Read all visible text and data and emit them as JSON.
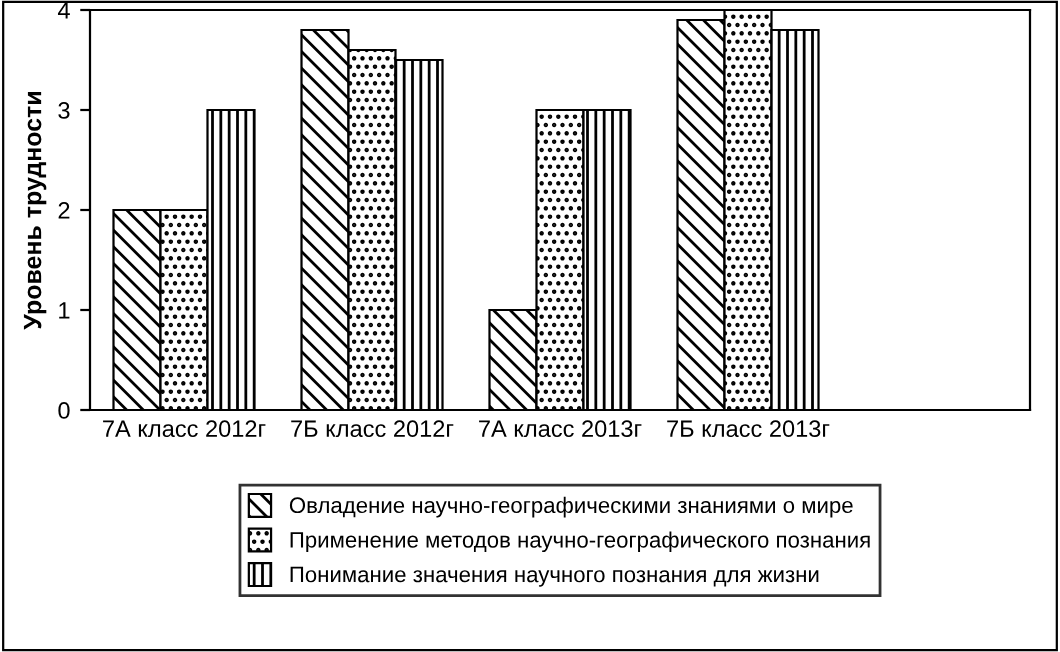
{
  "chart_data": {
    "type": "bar",
    "ylabel": "Уровень трудности",
    "categories": [
      "7А класс 2012г",
      "7Б класс 2012г",
      "7А класс 2013г",
      "7Б класс 2013г",
      null
    ],
    "series": [
      {
        "name": "Овладение научно-географическими знаниями о мире",
        "color": "#000000",
        "values": [
          2,
          3.8,
          1,
          3.9,
          null
        ]
      },
      {
        "name": "Применение методов научно-географического познания",
        "color": "#000000",
        "values": [
          2,
          3.6,
          3,
          4,
          null
        ]
      },
      {
        "name": "Понимание значения научного познания для жизни",
        "color": "#000000",
        "values": [
          3,
          3.5,
          3,
          3.8,
          null
        ]
      }
    ],
    "ylim": [
      0,
      4
    ],
    "yticks": [
      0,
      1,
      2,
      3,
      4
    ],
    "grid": false,
    "legend": "bottom"
  }
}
